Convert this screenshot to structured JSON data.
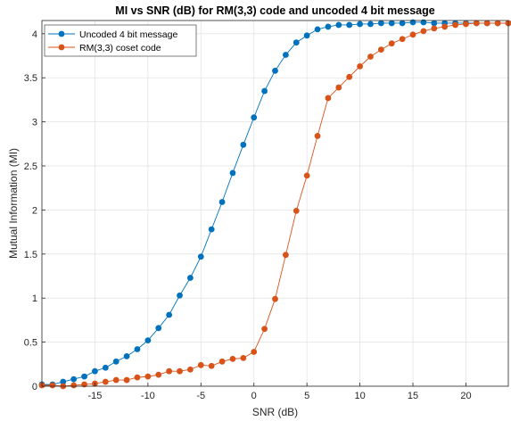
{
  "chart_data": {
    "type": "line",
    "title": "MI vs SNR (dB) for RM(3,3) code and uncoded 4 bit message",
    "xlabel": "SNR (dB)",
    "ylabel": "Mutual Information (MI)",
    "xlim": [
      -20,
      24
    ],
    "ylim": [
      0,
      4.15
    ],
    "xticks": [
      -15,
      -10,
      -5,
      0,
      5,
      10,
      15,
      20
    ],
    "yticks": [
      0,
      0.5,
      1,
      1.5,
      2,
      2.5,
      3,
      3.5,
      4
    ],
    "xtick_labels": [
      "-15",
      "-10",
      "-5",
      "0",
      "5",
      "10",
      "15",
      "20"
    ],
    "ytick_labels": [
      "0",
      "0.5",
      "1",
      "1.5",
      "2",
      "2.5",
      "3",
      "3.5",
      "4"
    ],
    "grid": true,
    "legend_position": "top-left",
    "x": [
      -20,
      -19,
      -18,
      -17,
      -16,
      -15,
      -14,
      -13,
      -12,
      -11,
      -10,
      -9,
      -8,
      -7,
      -6,
      -5,
      -4,
      -3,
      -2,
      -1,
      0,
      1,
      2,
      3,
      4,
      5,
      6,
      7,
      8,
      9,
      10,
      11,
      12,
      13,
      14,
      15,
      16,
      17,
      18,
      19,
      20,
      21,
      22,
      23,
      24
    ],
    "series": [
      {
        "name": "Uncoded 4 bit message",
        "color": "#0072BD",
        "values": [
          0.02,
          0.02,
          0.05,
          0.08,
          0.11,
          0.17,
          0.21,
          0.28,
          0.34,
          0.42,
          0.52,
          0.66,
          0.81,
          1.03,
          1.23,
          1.47,
          1.78,
          2.09,
          2.42,
          2.74,
          3.05,
          3.35,
          3.58,
          3.76,
          3.9,
          3.98,
          4.05,
          4.08,
          4.1,
          4.1,
          4.11,
          4.11,
          4.12,
          4.12,
          4.12,
          4.13,
          4.13,
          4.12,
          4.12,
          4.12,
          4.12,
          4.12,
          4.12,
          4.12,
          4.12
        ]
      },
      {
        "name": "RM(3,3) coset code",
        "color": "#D95319",
        "values": [
          0.01,
          0.01,
          0.0,
          0.01,
          0.02,
          0.03,
          0.05,
          0.07,
          0.07,
          0.1,
          0.11,
          0.13,
          0.17,
          0.17,
          0.19,
          0.24,
          0.23,
          0.28,
          0.31,
          0.32,
          0.39,
          0.65,
          0.99,
          1.49,
          1.99,
          2.39,
          2.84,
          3.27,
          3.39,
          3.51,
          3.63,
          3.74,
          3.82,
          3.89,
          3.94,
          3.99,
          4.03,
          4.06,
          4.08,
          4.1,
          4.11,
          4.12,
          4.12,
          4.12,
          4.12
        ]
      }
    ]
  }
}
